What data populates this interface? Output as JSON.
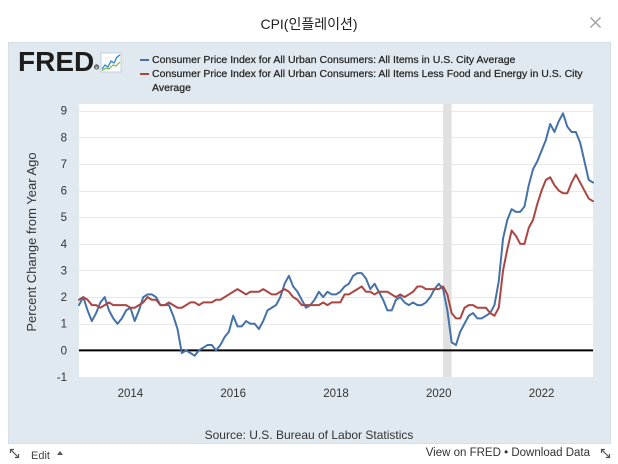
{
  "window": {
    "title": "CPI(인플레이션)",
    "close_icon": "close-icon"
  },
  "logo": {
    "text": "FRED",
    "icon": "chart-line-icon"
  },
  "chart_data": {
    "type": "line",
    "ylabel": "Percent Change from Year Ago",
    "legend_position": "top",
    "grid": true,
    "zero_line": true,
    "xlim": [
      "2013-01",
      "2023-01"
    ],
    "ylim": [
      -1,
      9.25
    ],
    "x_ticks": [
      "2014",
      "2016",
      "2018",
      "2020",
      "2022"
    ],
    "y_ticks": [
      -1,
      0,
      1,
      2,
      3,
      4,
      5,
      6,
      7,
      8,
      9
    ],
    "shaded_periods": [
      {
        "start": "2020-02",
        "end": "2020-04",
        "color": "#e1e1e1"
      }
    ],
    "x": [
      "2013-01",
      "2013-02",
      "2013-03",
      "2013-04",
      "2013-05",
      "2013-06",
      "2013-07",
      "2013-08",
      "2013-09",
      "2013-10",
      "2013-11",
      "2013-12",
      "2014-01",
      "2014-02",
      "2014-03",
      "2014-04",
      "2014-05",
      "2014-06",
      "2014-07",
      "2014-08",
      "2014-09",
      "2014-10",
      "2014-11",
      "2014-12",
      "2015-01",
      "2015-02",
      "2015-03",
      "2015-04",
      "2015-05",
      "2015-06",
      "2015-07",
      "2015-08",
      "2015-09",
      "2015-10",
      "2015-11",
      "2015-12",
      "2016-01",
      "2016-02",
      "2016-03",
      "2016-04",
      "2016-05",
      "2016-06",
      "2016-07",
      "2016-08",
      "2016-09",
      "2016-10",
      "2016-11",
      "2016-12",
      "2017-01",
      "2017-02",
      "2017-03",
      "2017-04",
      "2017-05",
      "2017-06",
      "2017-07",
      "2017-08",
      "2017-09",
      "2017-10",
      "2017-11",
      "2017-12",
      "2018-01",
      "2018-02",
      "2018-03",
      "2018-04",
      "2018-05",
      "2018-06",
      "2018-07",
      "2018-08",
      "2018-09",
      "2018-10",
      "2018-11",
      "2018-12",
      "2019-01",
      "2019-02",
      "2019-03",
      "2019-04",
      "2019-05",
      "2019-06",
      "2019-07",
      "2019-08",
      "2019-09",
      "2019-10",
      "2019-11",
      "2019-12",
      "2020-01",
      "2020-02",
      "2020-03",
      "2020-04",
      "2020-05",
      "2020-06",
      "2020-07",
      "2020-08",
      "2020-09",
      "2020-10",
      "2020-11",
      "2020-12",
      "2021-01",
      "2021-02",
      "2021-03",
      "2021-04",
      "2021-05",
      "2021-06",
      "2021-07",
      "2021-08",
      "2021-09",
      "2021-10",
      "2021-11",
      "2021-12",
      "2022-01",
      "2022-02",
      "2022-03",
      "2022-04",
      "2022-05",
      "2022-06",
      "2022-07",
      "2022-08",
      "2022-09",
      "2022-10",
      "2022-11",
      "2022-12",
      "2023-01"
    ],
    "series": [
      {
        "name": "Consumer Price Index for All Urban Consumers: All Items in U.S. City Average",
        "color": "#4572a7",
        "values": [
          1.7,
          2.0,
          1.5,
          1.1,
          1.4,
          1.8,
          2.0,
          1.5,
          1.2,
          1.0,
          1.2,
          1.5,
          1.6,
          1.1,
          1.5,
          2.0,
          2.1,
          2.1,
          2.0,
          1.7,
          1.7,
          1.7,
          1.3,
          0.8,
          -0.1,
          0.0,
          -0.1,
          -0.2,
          0.0,
          0.1,
          0.2,
          0.2,
          0.0,
          0.2,
          0.5,
          0.7,
          1.3,
          0.9,
          0.9,
          1.1,
          1.0,
          1.0,
          0.8,
          1.1,
          1.5,
          1.6,
          1.7,
          2.0,
          2.5,
          2.8,
          2.4,
          2.2,
          1.9,
          1.6,
          1.7,
          1.9,
          2.2,
          2.0,
          2.2,
          2.1,
          2.1,
          2.2,
          2.4,
          2.5,
          2.8,
          2.9,
          2.9,
          2.7,
          2.3,
          2.5,
          2.2,
          1.9,
          1.5,
          1.5,
          1.9,
          2.0,
          1.8,
          1.7,
          1.8,
          1.7,
          1.7,
          1.8,
          2.0,
          2.3,
          2.5,
          2.3,
          1.5,
          0.3,
          0.2,
          0.7,
          1.0,
          1.3,
          1.4,
          1.2,
          1.2,
          1.3,
          1.4,
          1.7,
          2.6,
          4.2,
          4.9,
          5.3,
          5.2,
          5.2,
          5.4,
          6.2,
          6.8,
          7.1,
          7.5,
          7.9,
          8.5,
          8.2,
          8.6,
          8.9,
          8.4,
          8.2,
          8.2,
          7.8,
          7.1,
          6.4,
          6.3
        ]
      },
      {
        "name": "Consumer Price Index for All Urban Consumers: All Items Less Food and Energy in U.S. City Average",
        "color": "#aa4643",
        "values": [
          1.9,
          2.0,
          1.9,
          1.7,
          1.7,
          1.6,
          1.7,
          1.8,
          1.7,
          1.7,
          1.7,
          1.7,
          1.6,
          1.6,
          1.7,
          1.8,
          2.0,
          1.9,
          1.9,
          1.7,
          1.7,
          1.8,
          1.7,
          1.6,
          1.6,
          1.7,
          1.8,
          1.8,
          1.7,
          1.8,
          1.8,
          1.8,
          1.9,
          1.9,
          2.0,
          2.1,
          2.2,
          2.3,
          2.2,
          2.1,
          2.2,
          2.2,
          2.2,
          2.3,
          2.2,
          2.1,
          2.1,
          2.2,
          2.3,
          2.2,
          2.0,
          1.9,
          1.7,
          1.7,
          1.7,
          1.7,
          1.7,
          1.8,
          1.7,
          1.8,
          1.8,
          1.8,
          2.1,
          2.1,
          2.2,
          2.3,
          2.4,
          2.2,
          2.2,
          2.1,
          2.2,
          2.2,
          2.2,
          2.1,
          2.0,
          2.1,
          2.0,
          2.1,
          2.2,
          2.4,
          2.4,
          2.3,
          2.3,
          2.3,
          2.3,
          2.4,
          2.1,
          1.4,
          1.2,
          1.2,
          1.6,
          1.7,
          1.7,
          1.6,
          1.6,
          1.6,
          1.4,
          1.3,
          1.6,
          3.0,
          3.8,
          4.5,
          4.3,
          4.0,
          4.0,
          4.6,
          4.9,
          5.5,
          6.0,
          6.4,
          6.5,
          6.2,
          6.0,
          5.9,
          5.9,
          6.3,
          6.6,
          6.3,
          6.0,
          5.7,
          5.6
        ]
      }
    ]
  },
  "source": "Source: U.S. Bureau of Labor Statistics",
  "footer": {
    "resize_icon": "resize-icon",
    "edit": "Edit",
    "edit_icon": "caret-up-icon",
    "view": "View on FRED",
    "separator": "•",
    "download": "Download Data"
  }
}
